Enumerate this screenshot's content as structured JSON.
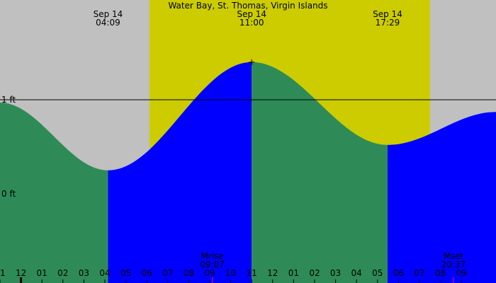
{
  "chart_data": {
    "type": "area",
    "title": "Water Bay, St. Thomas, Virgin Islands",
    "y_unit": "ft",
    "y_ticks": [
      {
        "label": "1 ft",
        "value": 1
      },
      {
        "label": "0 ft",
        "value": 0
      }
    ],
    "x_start_hour": 23,
    "x_end_hour": 46.65,
    "hour_ticks": [
      "11",
      "12",
      "01",
      "02",
      "03",
      "04",
      "05",
      "06",
      "07",
      "08",
      "09",
      "10",
      "11",
      "12",
      "01",
      "02",
      "03",
      "04",
      "05",
      "06",
      "07",
      "08",
      "09"
    ],
    "daylight": {
      "start_hour": 30.13,
      "end_hour": 43.5
    },
    "colors": {
      "night": "#c0c0c0",
      "day": "#cccc00",
      "rising": "#0000ff",
      "falling": "#2e8b57",
      "marker": "#ff0066"
    },
    "tide_events": [
      {
        "date": "Sep 14",
        "time": "04:09",
        "hour": 28.15,
        "height_ft": 0.25,
        "type": "low"
      },
      {
        "date": "Sep 14",
        "time": "11:00",
        "hour": 35.0,
        "height_ft": 1.4,
        "type": "high"
      },
      {
        "date": "Sep 14",
        "time": "17:29",
        "hour": 41.48,
        "height_ft": 0.52,
        "type": "low"
      }
    ],
    "boundary_heights": {
      "start_ft": 0.97,
      "end_ft": 0.87
    },
    "moon_events": [
      {
        "label": "Mrise",
        "time": "09:07",
        "hour": 33.12
      },
      {
        "label": "Mset",
        "time": "20:37",
        "hour": 44.62
      }
    ]
  }
}
